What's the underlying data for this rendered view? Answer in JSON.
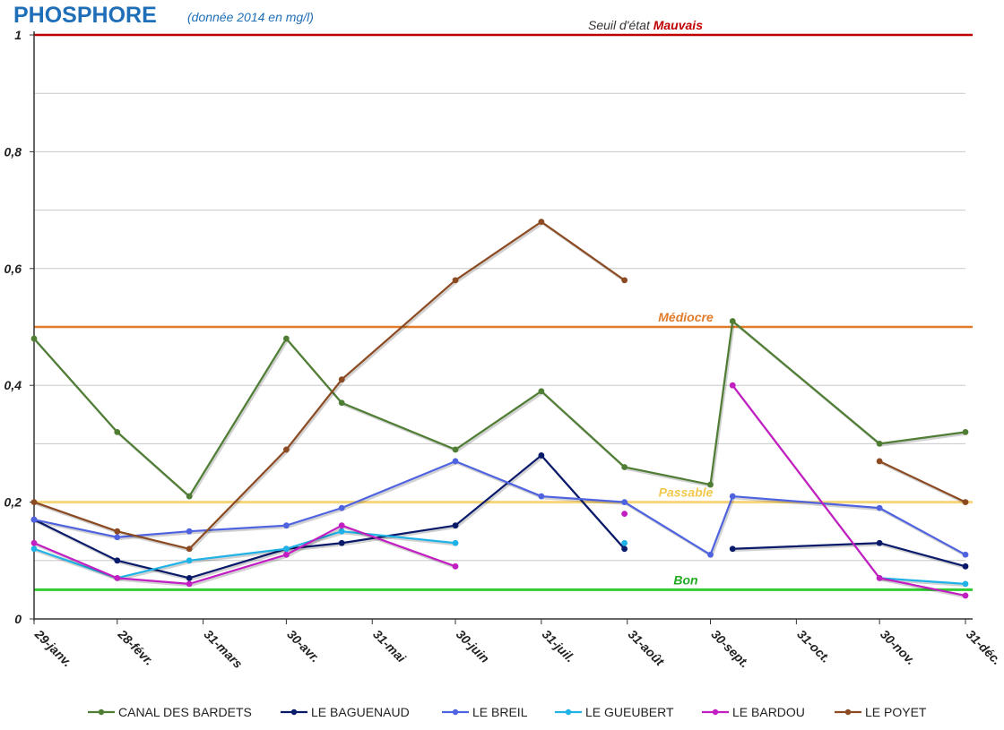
{
  "chart_data": {
    "type": "line",
    "title": "PHOSPHORE",
    "subtitle": "(donnée 2014 en mg/l)",
    "xlabel": "",
    "ylabel": "",
    "ylim": [
      0,
      1
    ],
    "y_ticks": [
      "0",
      "0,2",
      "0,4",
      "0,6",
      "0,8",
      "1"
    ],
    "x_tick_labels": [
      "29-janv.",
      "28-févr.",
      "31-mars",
      "30-avr.",
      "31-mai",
      "30-juin",
      "31-juil.",
      "31-août",
      "30-sept.",
      "31-oct.",
      "30-nov.",
      "31-déc."
    ],
    "x_tick_dates": [
      "2014-01-29",
      "2014-02-28",
      "2014-03-31",
      "2014-04-30",
      "2014-05-31",
      "2014-06-30",
      "2014-07-31",
      "2014-08-31",
      "2014-09-30",
      "2014-10-31",
      "2014-11-30",
      "2014-12-31"
    ],
    "xlim": [
      "2014-01-29",
      "2014-12-31"
    ],
    "grid": true,
    "legend_position": "bottom",
    "thresholds": [
      {
        "value": 1.0,
        "color": "#c00000",
        "label_prefix": "Seuil d'état",
        "label": "Mauvais",
        "prefix_color": "#333333",
        "label_color": "#c00000"
      },
      {
        "value": 0.5,
        "color": "#e07b2a",
        "label_prefix": "",
        "label": "Médiocre",
        "prefix_color": "#e07b2a",
        "label_color": "#e07b2a"
      },
      {
        "value": 0.2,
        "color": "#f7d57a",
        "label_prefix": "",
        "label": "Passable",
        "prefix_color": "#f2c94c",
        "label_color": "#f2c94c"
      },
      {
        "value": 0.05,
        "color": "#33cc33",
        "label_prefix": "",
        "label": "Bon",
        "prefix_color": "#22aa22",
        "label_color": "#22aa22"
      }
    ],
    "series": [
      {
        "name": "CANAL DES BARDETS",
        "color": "#4e7d33",
        "segments": [
          [
            [
              "2014-01-29",
              0.48
            ],
            [
              "2014-02-28",
              0.32
            ],
            [
              "2014-03-26",
              0.21
            ],
            [
              "2014-04-30",
              0.48
            ],
            [
              "2014-05-20",
              0.37
            ],
            [
              "2014-06-30",
              0.29
            ],
            [
              "2014-07-31",
              0.39
            ],
            [
              "2014-08-30",
              0.26
            ],
            [
              "2014-09-30",
              0.23
            ],
            [
              "2014-10-08",
              0.51
            ],
            [
              "2014-11-30",
              0.3
            ],
            [
              "2014-12-31",
              0.32
            ]
          ]
        ]
      },
      {
        "name": "LE BAGUENAUD",
        "color": "#0a1a6b",
        "segments": [
          [
            [
              "2014-01-29",
              0.17
            ],
            [
              "2014-02-28",
              0.1
            ],
            [
              "2014-03-26",
              0.07
            ],
            [
              "2014-04-30",
              0.12
            ],
            [
              "2014-05-20",
              0.13
            ],
            [
              "2014-06-30",
              0.16
            ],
            [
              "2014-07-31",
              0.28
            ],
            [
              "2014-08-30",
              0.12
            ]
          ],
          [
            [
              "2014-10-08",
              0.12
            ],
            [
              "2014-11-30",
              0.13
            ],
            [
              "2014-12-31",
              0.09
            ]
          ]
        ]
      },
      {
        "name": "LE BREIL",
        "color": "#4f63e0",
        "segments": [
          [
            [
              "2014-01-29",
              0.17
            ],
            [
              "2014-02-28",
              0.14
            ],
            [
              "2014-03-26",
              0.15
            ],
            [
              "2014-04-30",
              0.16
            ],
            [
              "2014-05-20",
              0.19
            ],
            [
              "2014-06-30",
              0.27
            ],
            [
              "2014-07-31",
              0.21
            ],
            [
              "2014-08-30",
              0.2
            ],
            [
              "2014-09-30",
              0.11
            ],
            [
              "2014-10-08",
              0.21
            ],
            [
              "2014-11-30",
              0.19
            ],
            [
              "2014-12-31",
              0.11
            ]
          ]
        ]
      },
      {
        "name": "LE GUEUBERT",
        "color": "#1fb2e6",
        "segments": [
          [
            [
              "2014-01-29",
              0.12
            ],
            [
              "2014-02-28",
              0.07
            ],
            [
              "2014-03-26",
              0.1
            ],
            [
              "2014-04-30",
              0.12
            ],
            [
              "2014-05-20",
              0.15
            ],
            [
              "2014-06-30",
              0.13
            ]
          ],
          [
            [
              "2014-08-30",
              0.13
            ]
          ],
          [
            [
              "2014-11-30",
              0.07
            ],
            [
              "2014-12-31",
              0.06
            ]
          ]
        ]
      },
      {
        "name": "LE BARDOU",
        "color": "#c21ec2",
        "segments": [
          [
            [
              "2014-01-29",
              0.13
            ],
            [
              "2014-02-28",
              0.07
            ],
            [
              "2014-03-26",
              0.06
            ],
            [
              "2014-04-30",
              0.11
            ],
            [
              "2014-05-20",
              0.16
            ],
            [
              "2014-06-30",
              0.09
            ]
          ],
          [
            [
              "2014-08-30",
              0.18
            ]
          ],
          [
            [
              "2014-10-08",
              0.4
            ],
            [
              "2014-11-30",
              0.07
            ],
            [
              "2014-12-31",
              0.04
            ]
          ]
        ]
      },
      {
        "name": "LE POYET",
        "color": "#8b4a22",
        "segments": [
          [
            [
              "2014-01-29",
              0.2
            ],
            [
              "2014-02-28",
              0.15
            ],
            [
              "2014-03-26",
              0.12
            ],
            [
              "2014-04-30",
              0.29
            ],
            [
              "2014-05-20",
              0.41
            ],
            [
              "2014-06-30",
              0.58
            ],
            [
              "2014-07-31",
              0.68
            ],
            [
              "2014-08-30",
              0.58
            ]
          ],
          [
            [
              "2014-11-30",
              0.27
            ],
            [
              "2014-12-31",
              0.2
            ]
          ]
        ]
      }
    ]
  }
}
